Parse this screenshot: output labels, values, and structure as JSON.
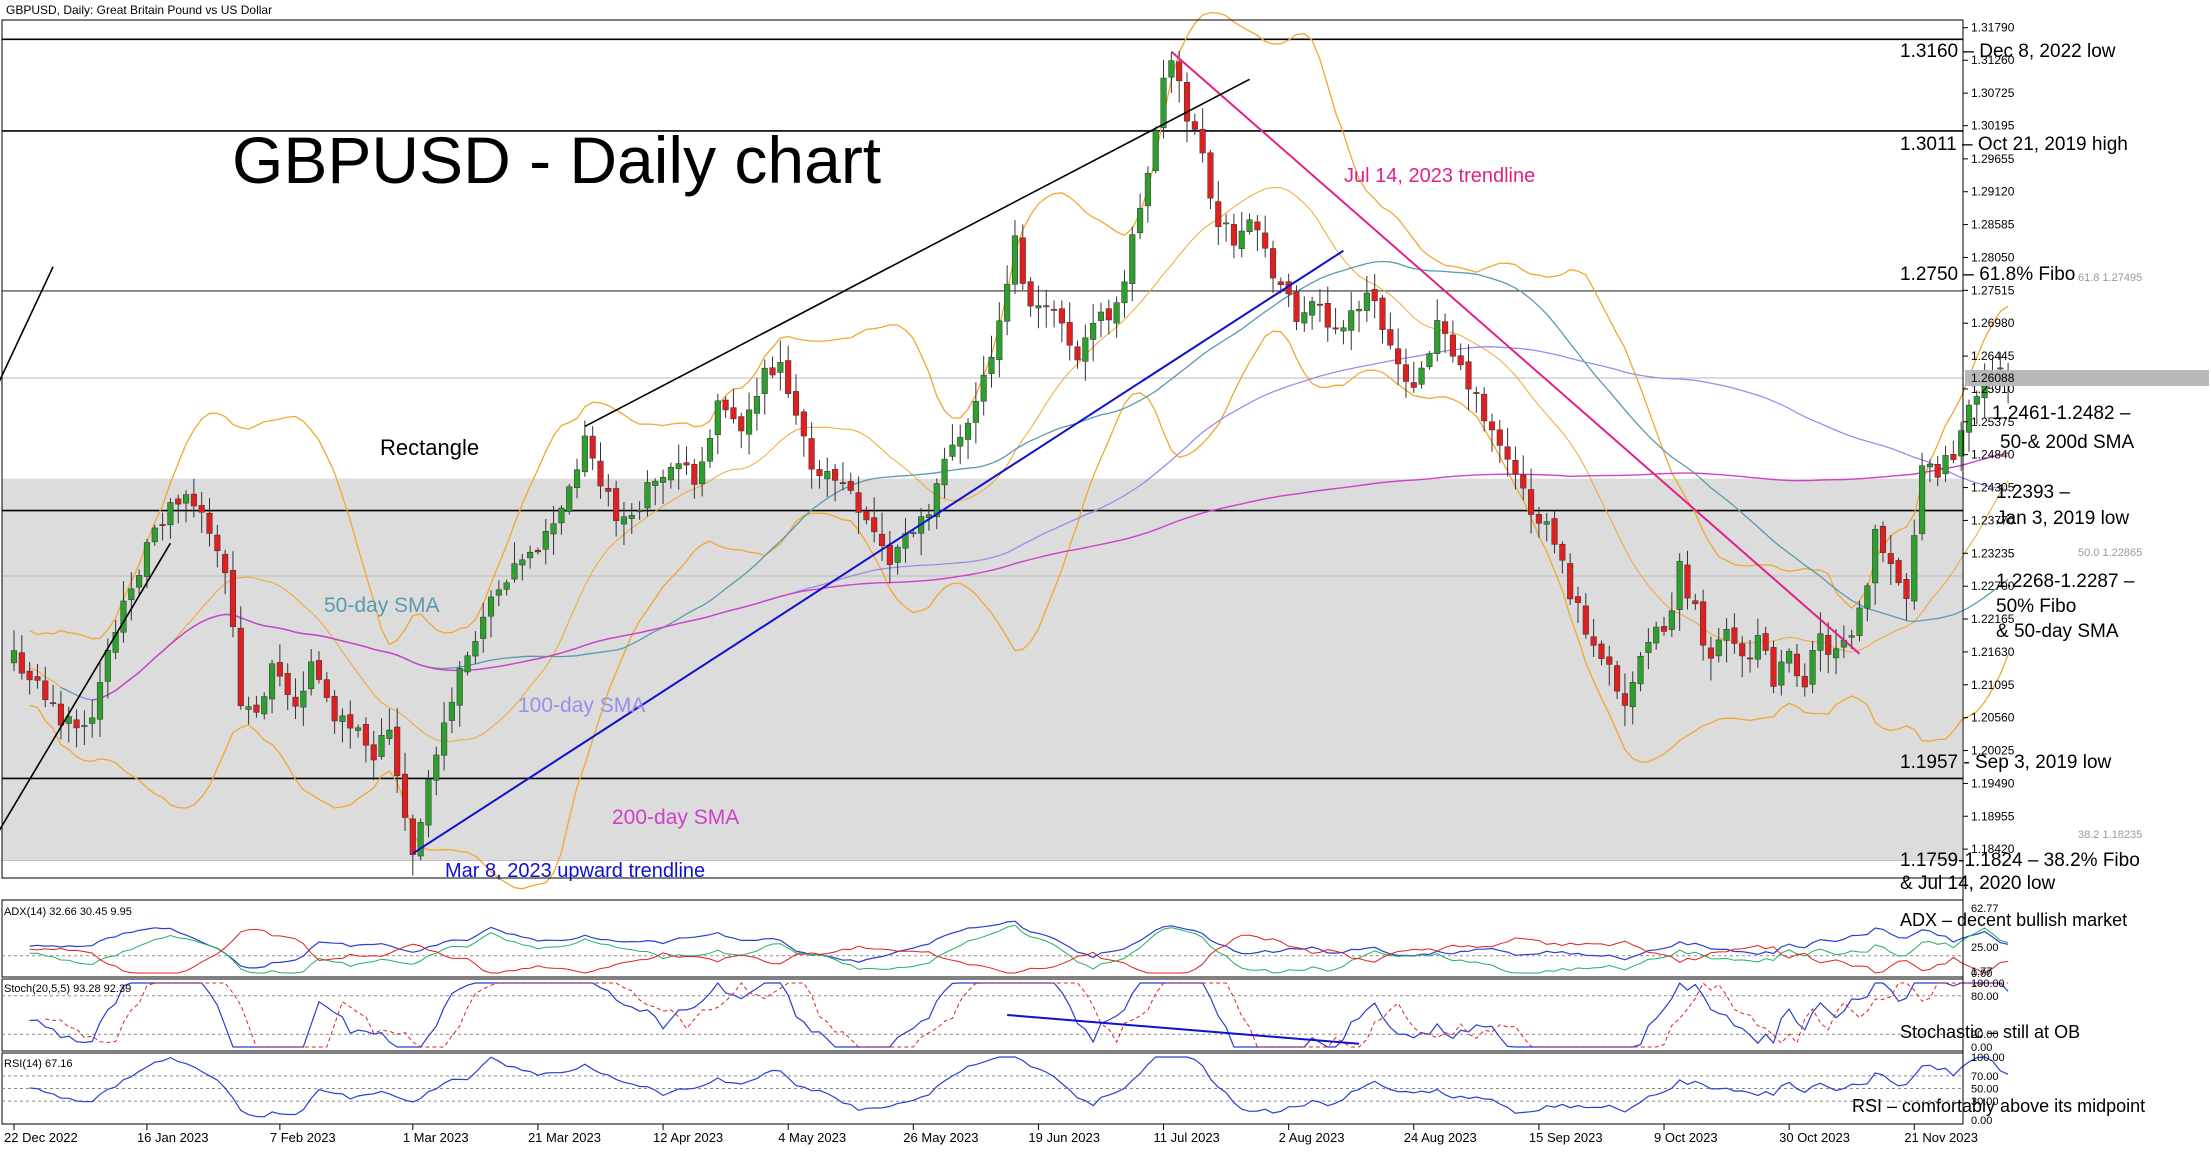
{
  "header": {
    "symbol_line": "GBPUSD, Daily:  Great Britain Pound vs US Dollar",
    "big_title": "GBPUSD - Daily chart"
  },
  "colors": {
    "bull": "#2e9e2e",
    "bear": "#e02020",
    "sma50": "#5a9ab0",
    "sma100": "#9a8ee8",
    "sma200": "#d040c8",
    "bollinger": "#f0a830",
    "upTrend": "#1010d0",
    "julyTrend": "#e0208a",
    "rectangle": "#dcdcdc",
    "adxMain": "#2a3fd0",
    "diPlus": "#22b060",
    "diMinus": "#e02020",
    "stochMain": "#2a3fd0",
    "stochSignal": "#e02020",
    "rsi": "#2a3fd0"
  },
  "chart_data": {
    "type": "candlestick",
    "title": "GBPUSD - Daily chart",
    "current_price": "1.26088",
    "price_axis": {
      "range": [
        1.1795,
        1.3185
      ],
      "ticks": [
        "1.31790",
        "1.31260",
        "1.30725",
        "1.30195",
        "1.29655",
        "1.29120",
        "1.28585",
        "1.28050",
        "1.27515",
        "1.26980",
        "1.26445",
        "1.25910",
        "1.25375",
        "1.24840",
        "1.24305",
        "1.23770",
        "1.23235",
        "1.22700",
        "1.22165",
        "1.21630",
        "1.21095",
        "1.20560",
        "1.20025",
        "1.19490",
        "1.18955",
        "1.18420"
      ]
    },
    "date_axis": {
      "labels": [
        "22 Dec 2022",
        "16 Jan 2023",
        "7 Feb 2023",
        "1 Mar 2023",
        "21 Mar 2023",
        "12 Apr 2023",
        "4 May 2023",
        "26 May 2023",
        "19 Jun 2023",
        "11 Jul 2023",
        "2 Aug 2023",
        "24 Aug 2023",
        "15 Sep 2023",
        "9 Oct 2023",
        "30 Oct 2023",
        "21 Nov 2023"
      ],
      "label_bar_index": [
        0,
        17,
        34,
        51,
        67,
        83,
        99,
        115,
        131,
        147,
        163,
        179,
        195,
        211,
        227,
        243
      ]
    },
    "close_anchors": [
      [
        0,
        1.216
      ],
      [
        6,
        1.205
      ],
      [
        10,
        1.206
      ],
      [
        14,
        1.225
      ],
      [
        17,
        1.233
      ],
      [
        20,
        1.24
      ],
      [
        22,
        1.241
      ],
      [
        25,
        1.237
      ],
      [
        27,
        1.23
      ],
      [
        29,
        1.208
      ],
      [
        31,
        1.205
      ],
      [
        33,
        1.213
      ],
      [
        36,
        1.208
      ],
      [
        38,
        1.214
      ],
      [
        40,
        1.208
      ],
      [
        42,
        1.205
      ],
      [
        44,
        1.205
      ],
      [
        46,
        1.2
      ],
      [
        48,
        1.204
      ],
      [
        50,
        1.19
      ],
      [
        51,
        1.184
      ],
      [
        53,
        1.195
      ],
      [
        55,
        1.204
      ],
      [
        57,
        1.213
      ],
      [
        60,
        1.222
      ],
      [
        64,
        1.229
      ],
      [
        68,
        1.235
      ],
      [
        71,
        1.243
      ],
      [
        73,
        1.25
      ],
      [
        75,
        1.244
      ],
      [
        78,
        1.237
      ],
      [
        81,
        1.243
      ],
      [
        84,
        1.246
      ],
      [
        87,
        1.245
      ],
      [
        90,
        1.256
      ],
      [
        93,
        1.252
      ],
      [
        96,
        1.261
      ],
      [
        98,
        1.262
      ],
      [
        100,
        1.254
      ],
      [
        102,
        1.247
      ],
      [
        104,
        1.245
      ],
      [
        107,
        1.243
      ],
      [
        110,
        1.236
      ],
      [
        112,
        1.231
      ],
      [
        114,
        1.235
      ],
      [
        117,
        1.24
      ],
      [
        120,
        1.25
      ],
      [
        123,
        1.257
      ],
      [
        126,
        1.269
      ],
      [
        128,
        1.283
      ],
      [
        130,
        1.272
      ],
      [
        132,
        1.274
      ],
      [
        134,
        1.269
      ],
      [
        136,
        1.265
      ],
      [
        138,
        1.27
      ],
      [
        140,
        1.271
      ],
      [
        142,
        1.277
      ],
      [
        144,
        1.289
      ],
      [
        146,
        1.3
      ],
      [
        147,
        1.31
      ],
      [
        148,
        1.312
      ],
      [
        150,
        1.304
      ],
      [
        152,
        1.297
      ],
      [
        154,
        1.286
      ],
      [
        156,
        1.284
      ],
      [
        158,
        1.288
      ],
      [
        160,
        1.281
      ],
      [
        162,
        1.276
      ],
      [
        164,
        1.27
      ],
      [
        166,
        1.274
      ],
      [
        168,
        1.268
      ],
      [
        170,
        1.27
      ],
      [
        172,
        1.273
      ],
      [
        174,
        1.274
      ],
      [
        176,
        1.266
      ],
      [
        178,
        1.259
      ],
      [
        180,
        1.263
      ],
      [
        182,
        1.269
      ],
      [
        184,
        1.264
      ],
      [
        186,
        1.26
      ],
      [
        188,
        1.254
      ],
      [
        190,
        1.249
      ],
      [
        192,
        1.246
      ],
      [
        194,
        1.238
      ],
      [
        196,
        1.237
      ],
      [
        198,
        1.23
      ],
      [
        200,
        1.223
      ],
      [
        202,
        1.217
      ],
      [
        204,
        1.215
      ],
      [
        206,
        1.208
      ],
      [
        208,
        1.214
      ],
      [
        210,
        1.219
      ],
      [
        212,
        1.223
      ],
      [
        213,
        1.23
      ],
      [
        215,
        1.223
      ],
      [
        217,
        1.215
      ],
      [
        219,
        1.221
      ],
      [
        221,
        1.216
      ],
      [
        223,
        1.218
      ],
      [
        225,
        1.212
      ],
      [
        227,
        1.215
      ],
      [
        229,
        1.212
      ],
      [
        231,
        1.218
      ],
      [
        233,
        1.216
      ],
      [
        235,
        1.218
      ],
      [
        237,
        1.226
      ],
      [
        238,
        1.236
      ],
      [
        240,
        1.231
      ],
      [
        242,
        1.226
      ],
      [
        243,
        1.236
      ],
      [
        244,
        1.247
      ],
      [
        246,
        1.246
      ],
      [
        248,
        1.249
      ],
      [
        250,
        1.255
      ],
      [
        252,
        1.262
      ],
      [
        254,
        1.261
      ]
    ],
    "horizontal_levels": [
      {
        "price": 1.316,
        "label": "1.3160 – Dec 8, 2022 low"
      },
      {
        "price": 1.3011,
        "label": "1.3011 – Oct 21, 2019 high"
      },
      {
        "price": 1.275,
        "label": "1.2750 – 61.8% Fibo"
      },
      {
        "price": 1.2393,
        "label_lines": [
          "1.2393 –",
          "Jan 3, 2019 low"
        ]
      },
      {
        "price": 1.1957,
        "label": "1.1957 - Sep 3, 2019 low"
      }
    ],
    "fib_tags": [
      {
        "price": 1.27495,
        "label": "61.8 1.27495"
      },
      {
        "price": 1.22865,
        "label": "50.0 1.22865"
      },
      {
        "price": 1.18235,
        "label": "38.2 1.18235"
      }
    ],
    "rectangle_zone": {
      "from": 1.1824,
      "to": 1.2445,
      "label": "Rectangle"
    },
    "annotations": {
      "sma50": "50-day SMA",
      "sma100": "100-day SMA",
      "sma200": "200-day SMA",
      "up_trendline": "Mar 8, 2023 upward trendline",
      "jul_trendline": "Jul 14, 2023 trendline",
      "sma_zone_lines": [
        "1.2461-1.2482 –",
        "50-& 200d SMA"
      ],
      "fibo_zone_lines": [
        "1.2268-1.2287 –",
        "50% Fibo",
        "& 50-day SMA"
      ],
      "bottom_zone_lines": [
        "1.1759-1.1824 – 38.2% Fibo",
        "& Jul 14, 2020 low"
      ]
    },
    "indicators": {
      "adx": {
        "header": "ADX(14) 32.66 30.45 9.95",
        "note": "ADX – decent bullish market",
        "ticks": [
          "62.77",
          "25.00",
          "1.77",
          "0.00"
        ]
      },
      "stochastic": {
        "header": "Stoch(20,5,5) 93.28 92.39",
        "note": "Stochastic – still at OB",
        "ticks": [
          "100.00",
          "80.00",
          "20.00",
          "0.00"
        ]
      },
      "rsi": {
        "header": "RSI(14) 67.16",
        "note": "RSI – comfortably above its midpoint",
        "ticks": [
          "100.00",
          "70.00",
          "50.00",
          "30.00",
          "0.00"
        ]
      }
    }
  }
}
